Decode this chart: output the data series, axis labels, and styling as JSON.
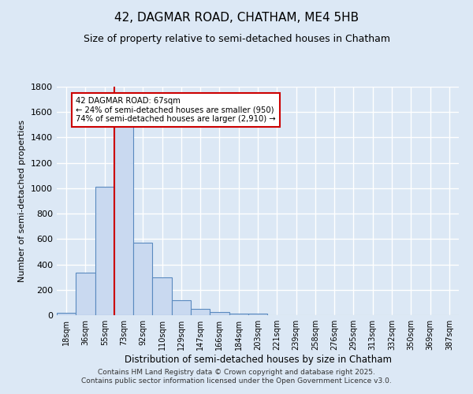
{
  "title_line1": "42, DAGMAR ROAD, CHATHAM, ME4 5HB",
  "title_line2": "Size of property relative to semi-detached houses in Chatham",
  "xlabel": "Distribution of semi-detached houses by size in Chatham",
  "ylabel": "Number of semi-detached properties",
  "categories": [
    "18sqm",
    "36sqm",
    "55sqm",
    "73sqm",
    "92sqm",
    "110sqm",
    "129sqm",
    "147sqm",
    "166sqm",
    "184sqm",
    "203sqm",
    "221sqm",
    "239sqm",
    "258sqm",
    "276sqm",
    "295sqm",
    "313sqm",
    "332sqm",
    "350sqm",
    "369sqm",
    "387sqm"
  ],
  "values": [
    20,
    335,
    1010,
    1510,
    570,
    300,
    120,
    50,
    25,
    15,
    10,
    0,
    0,
    0,
    0,
    0,
    0,
    0,
    0,
    0,
    0
  ],
  "bar_color": "#c9d9f0",
  "bar_edge_color": "#5a8abf",
  "annotation_title": "42 DAGMAR ROAD: 67sqm",
  "annotation_line2": "← 24% of semi-detached houses are smaller (950)",
  "annotation_line3": "74% of semi-detached houses are larger (2,910) →",
  "annotation_box_color": "#ffffff",
  "annotation_box_edge": "#cc0000",
  "red_line_color": "#cc0000",
  "ylim": [
    0,
    1800
  ],
  "yticks": [
    0,
    200,
    400,
    600,
    800,
    1000,
    1200,
    1400,
    1600,
    1800
  ],
  "footer_line1": "Contains HM Land Registry data © Crown copyright and database right 2025.",
  "footer_line2": "Contains public sector information licensed under the Open Government Licence v3.0.",
  "bg_color": "#dce8f5",
  "grid_color": "#ffffff"
}
